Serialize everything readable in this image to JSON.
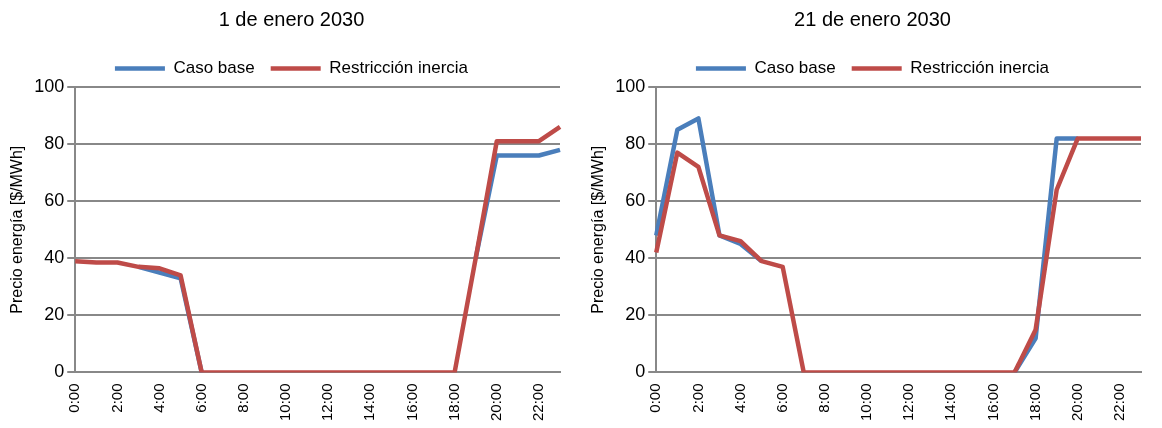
{
  "chart_data": [
    {
      "type": "line",
      "title": "1 de enero 2030",
      "ylabel": "Precio energía [$/MWh]",
      "categories": [
        "0:00",
        null,
        "2:00",
        null,
        "4:00",
        null,
        "6:00",
        null,
        "8:00",
        null,
        "10:00",
        null,
        "12:00",
        null,
        "14:00",
        null,
        "16:00",
        null,
        "18:00",
        null,
        "20:00",
        null,
        "22:00",
        null
      ],
      "series": [
        {
          "name": "Caso base",
          "color": "#4a7ebb",
          "values": [
            null,
            null,
            null,
            37,
            35,
            33,
            0,
            null,
            null,
            null,
            null,
            null,
            null,
            null,
            null,
            null,
            null,
            null,
            null,
            40,
            76,
            76,
            76,
            78
          ]
        },
        {
          "name": "Restricción inercia",
          "color": "#be4b48",
          "values": [
            39,
            38.5,
            38.5,
            37,
            36.5,
            34,
            0,
            0,
            0,
            0,
            0,
            0,
            0,
            0,
            0,
            0,
            0,
            0,
            0,
            40,
            81,
            81,
            81,
            86
          ]
        }
      ],
      "ylim": [
        0,
        100
      ],
      "yticks": [
        0,
        20,
        40,
        60,
        80,
        100
      ],
      "grid": "y",
      "legend": "top",
      "marker": "none",
      "line_style": "solid"
    },
    {
      "type": "line",
      "title": "21 de enero 2030",
      "ylabel": "Precio energía [$/MWh]",
      "categories": [
        "0:00",
        null,
        "2:00",
        null,
        "4:00",
        null,
        "6:00",
        null,
        "8:00",
        null,
        "10:00",
        null,
        "12:00",
        null,
        "14:00",
        null,
        "16:00",
        null,
        "18:00",
        null,
        "20:00",
        null,
        "22:00",
        null
      ],
      "series": [
        {
          "name": "Caso base",
          "color": "#4a7ebb",
          "values": [
            48,
            85,
            89,
            48,
            45,
            39,
            null,
            null,
            null,
            null,
            null,
            null,
            null,
            null,
            null,
            null,
            null,
            0,
            12,
            82,
            82,
            null,
            null,
            null
          ]
        },
        {
          "name": "Restricción inercia",
          "color": "#be4b48",
          "values": [
            42,
            77,
            72,
            48,
            46,
            39,
            37,
            0,
            0,
            0,
            0,
            0,
            0,
            0,
            0,
            0,
            0,
            0,
            15,
            64,
            82,
            82,
            82,
            82
          ]
        }
      ],
      "ylim": [
        0,
        100
      ],
      "yticks": [
        0,
        20,
        40,
        60,
        80,
        100
      ],
      "grid": "y",
      "legend": "top",
      "marker": "none",
      "line_style": "solid"
    }
  ]
}
